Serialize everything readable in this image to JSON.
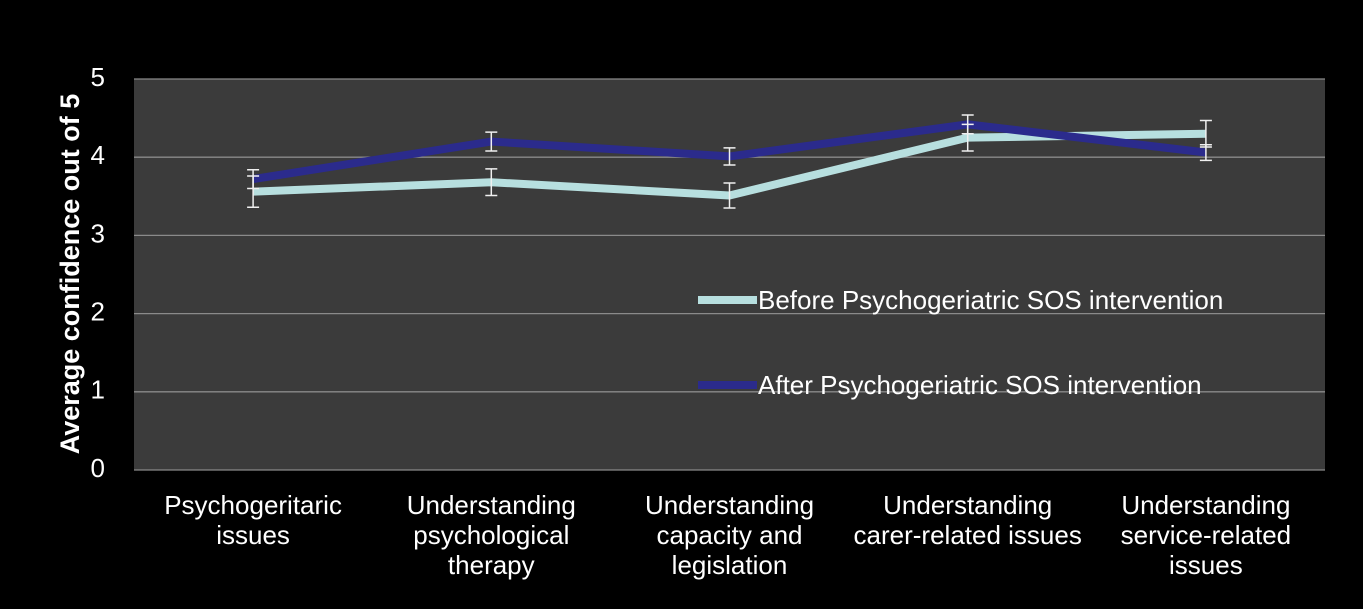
{
  "chart_data": {
    "type": "line",
    "ylabel": "Average confidence out of 5",
    "categories": [
      "Psychogeritaric issues",
      "Understanding psychological therapy",
      "Understanding capacity and legislation",
      "Understanding carer-related issues",
      "Understanding service-related issues"
    ],
    "series": [
      {
        "name": "Before Psychogeriatric SOS intervention",
        "color": "#b7dfdf",
        "values": [
          3.56,
          3.68,
          3.51,
          4.25,
          4.3
        ],
        "errors": [
          0.2,
          0.17,
          0.16,
          0.17,
          0.17
        ]
      },
      {
        "name": "After Psychogeriatric SOS intervention",
        "color": "#2b2b8c",
        "values": [
          3.72,
          4.2,
          4.01,
          4.42,
          4.06
        ],
        "errors": [
          0.12,
          0.12,
          0.11,
          0.12,
          0.1
        ]
      }
    ],
    "ylim": [
      0,
      5
    ],
    "yticks": [
      0,
      1,
      2,
      3,
      4,
      5
    ],
    "grid": true
  }
}
